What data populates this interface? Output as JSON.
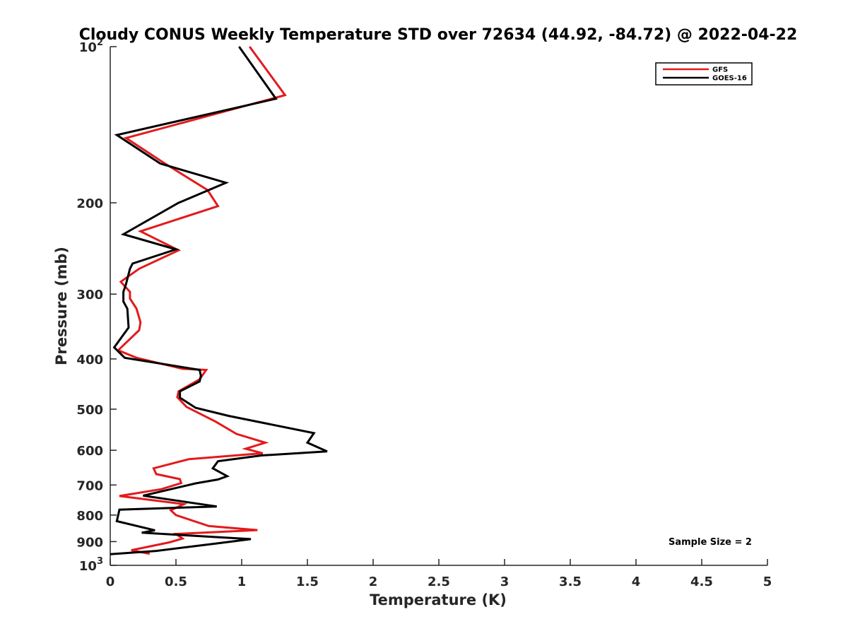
{
  "chart_data": {
    "type": "line",
    "title": "Cloudy CONUS Weekly Temperature STD over 72634 (44.92, -84.72) @ 2022-04-22",
    "xlabel": "Temperature (K)",
    "ylabel": "Pressure (mb)",
    "xlim": [
      0,
      5
    ],
    "ylim": [
      100,
      1000
    ],
    "y_scale": "log",
    "y_reversed": true,
    "grid": false,
    "legend_position": "top-right",
    "annotation": "Sample Size = 2",
    "x_ticks": [
      "0",
      "0.5",
      "1",
      "1.5",
      "2",
      "2.5",
      "3",
      "3.5",
      "4",
      "4.5",
      "5"
    ],
    "y_ticks": [
      {
        "value": 100,
        "base": "10",
        "exp": "2"
      },
      {
        "value": 200,
        "label": "200"
      },
      {
        "value": 300,
        "label": "300"
      },
      {
        "value": 400,
        "label": "400"
      },
      {
        "value": 500,
        "label": "500"
      },
      {
        "value": 600,
        "label": "600"
      },
      {
        "value": 700,
        "label": "700"
      },
      {
        "value": 800,
        "label": "800"
      },
      {
        "value": 900,
        "label": "900"
      },
      {
        "value": 1000,
        "base": "10",
        "exp": "3"
      }
    ],
    "series": [
      {
        "name": "GFS",
        "color": "#e31a1c",
        "points": [
          [
            1.06,
            100
          ],
          [
            1.33,
            124
          ],
          [
            0.12,
            150
          ],
          [
            0.4,
            167
          ],
          [
            0.74,
            189
          ],
          [
            0.82,
            203
          ],
          [
            0.23,
            227
          ],
          [
            0.52,
            247
          ],
          [
            0.22,
            268
          ],
          [
            0.08,
            284
          ],
          [
            0.15,
            297
          ],
          [
            0.15,
            306
          ],
          [
            0.2,
            320
          ],
          [
            0.23,
            340
          ],
          [
            0.22,
            352
          ],
          [
            0.06,
            385
          ],
          [
            0.2,
            398
          ],
          [
            0.55,
            418
          ],
          [
            0.73,
            420
          ],
          [
            0.68,
            438
          ],
          [
            0.52,
            462
          ],
          [
            0.51,
            474
          ],
          [
            0.58,
            495
          ],
          [
            0.8,
            528
          ],
          [
            0.96,
            558
          ],
          [
            1.18,
            580
          ],
          [
            1.03,
            596
          ],
          [
            1.16,
            608
          ],
          [
            0.6,
            624
          ],
          [
            0.33,
            650
          ],
          [
            0.35,
            667
          ],
          [
            0.53,
            682
          ],
          [
            0.54,
            694
          ],
          [
            0.39,
            713
          ],
          [
            0.07,
            735
          ],
          [
            0.56,
            762
          ],
          [
            0.46,
            783
          ],
          [
            0.5,
            800
          ],
          [
            0.75,
            840
          ],
          [
            1.12,
            855
          ],
          [
            0.5,
            870
          ],
          [
            0.55,
            888
          ],
          [
            0.45,
            903
          ],
          [
            0.16,
            935
          ],
          [
            0.3,
            950
          ]
        ]
      },
      {
        "name": "GOES-16",
        "color": "#000000",
        "points": [
          [
            0.98,
            100
          ],
          [
            1.26,
            126
          ],
          [
            0.05,
            148
          ],
          [
            0.38,
            168
          ],
          [
            0.88,
            183
          ],
          [
            0.52,
            200
          ],
          [
            0.1,
            230
          ],
          [
            0.5,
            246
          ],
          [
            0.17,
            262
          ],
          [
            0.15,
            268
          ],
          [
            0.12,
            287
          ],
          [
            0.1,
            297
          ],
          [
            0.1,
            310
          ],
          [
            0.13,
            320
          ],
          [
            0.14,
            348
          ],
          [
            0.03,
            380
          ],
          [
            0.11,
            398
          ],
          [
            0.68,
            420
          ],
          [
            0.69,
            431
          ],
          [
            0.68,
            442
          ],
          [
            0.53,
            462
          ],
          [
            0.53,
            475
          ],
          [
            0.65,
            497
          ],
          [
            0.9,
            515
          ],
          [
            1.55,
            556
          ],
          [
            1.5,
            580
          ],
          [
            1.65,
            603
          ],
          [
            1.15,
            614
          ],
          [
            0.82,
            630
          ],
          [
            0.78,
            650
          ],
          [
            0.89,
            673
          ],
          [
            0.82,
            683
          ],
          [
            0.65,
            695
          ],
          [
            0.25,
            734
          ],
          [
            0.81,
            770
          ],
          [
            0.07,
            781
          ],
          [
            0.05,
            822
          ],
          [
            0.34,
            856
          ],
          [
            0.24,
            865
          ],
          [
            1.07,
            890
          ],
          [
            0.8,
            908
          ],
          [
            0.35,
            938
          ],
          [
            0.0,
            952
          ]
        ]
      }
    ]
  }
}
